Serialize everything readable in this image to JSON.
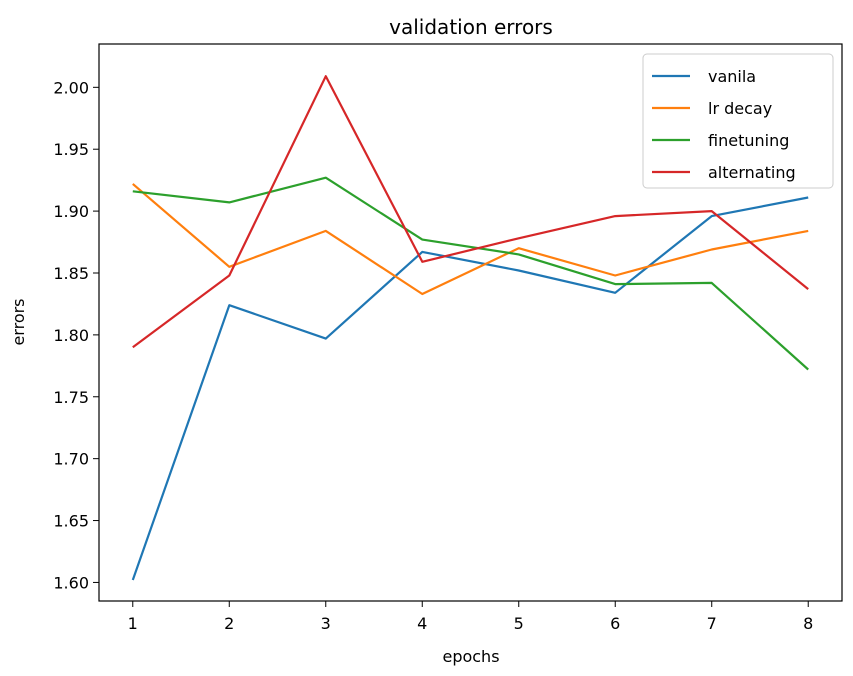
{
  "chart_data": {
    "type": "line",
    "title": "validation errors",
    "xlabel": "epochs",
    "ylabel": "errors",
    "x": [
      1,
      2,
      3,
      4,
      5,
      6,
      7,
      8
    ],
    "x_ticks": [
      "1",
      "2",
      "3",
      "4",
      "5",
      "6",
      "7",
      "8"
    ],
    "y_ticks": [
      "1.60",
      "1.65",
      "1.70",
      "1.75",
      "1.80",
      "1.85",
      "1.90",
      "1.95",
      "2.00"
    ],
    "ylim": [
      1.585,
      2.035
    ],
    "xlim": [
      0.65,
      8.35
    ],
    "grid": false,
    "legend_position": "upper right",
    "series": [
      {
        "name": "vanila",
        "color": "#1f77b4",
        "values": [
          1.602,
          1.824,
          1.797,
          1.867,
          1.852,
          1.834,
          1.896,
          1.911
        ]
      },
      {
        "name": "lr decay",
        "color": "#ff7f0e",
        "values": [
          1.922,
          1.855,
          1.884,
          1.833,
          1.87,
          1.848,
          1.869,
          1.884
        ]
      },
      {
        "name": "finetuning",
        "color": "#2ca02c",
        "values": [
          1.916,
          1.907,
          1.927,
          1.877,
          1.865,
          1.841,
          1.842,
          1.772
        ]
      },
      {
        "name": "alternating",
        "color": "#d62728",
        "values": [
          1.79,
          1.848,
          2.009,
          1.859,
          1.878,
          1.896,
          1.9,
          1.837
        ]
      }
    ]
  }
}
